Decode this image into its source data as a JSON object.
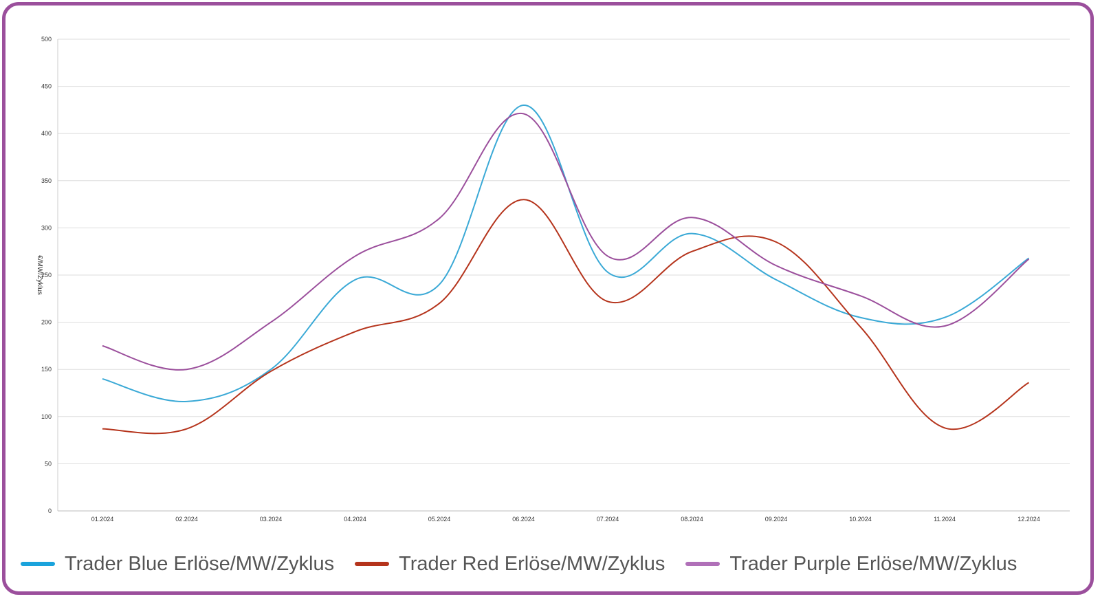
{
  "chart_data": {
    "type": "line",
    "title": "",
    "xlabel": "",
    "ylabel": "€/MW/Zyklus",
    "ylim": [
      0,
      500
    ],
    "yticks": [
      0,
      50,
      100,
      150,
      200,
      250,
      300,
      350,
      400,
      450,
      500
    ],
    "grid": true,
    "legend_position": "bottom",
    "categories": [
      "01.2024",
      "02.2024",
      "03.2024",
      "04.2024",
      "05.2024",
      "06.2024",
      "07.2024",
      "08.2024",
      "09.2024",
      "10.2024",
      "11.2024",
      "12.2024"
    ],
    "series": [
      {
        "name": "Trader Blue Erlöse/MW/Zyklus",
        "color": "#3aa9d6",
        "values": [
          140,
          116,
          150,
          245,
          240,
          430,
          253,
          294,
          245,
          205,
          205,
          268
        ]
      },
      {
        "name": "Trader Red Erlöse/MW/Zyklus",
        "color": "#b5341c",
        "values": [
          87,
          87,
          148,
          190,
          220,
          330,
          222,
          275,
          285,
          195,
          88,
          136
        ]
      },
      {
        "name": "Trader Purple Erlöse/MW/Zyklus",
        "color": "#9b4f9c",
        "values": [
          175,
          150,
          200,
          270,
          310,
          421,
          270,
          311,
          260,
          228,
          196,
          267
        ]
      }
    ]
  },
  "legend": {
    "items": [
      {
        "label": "Trader Blue Erlöse/MW/Zyklus",
        "color": "#1aa3dc"
      },
      {
        "label": "Trader Red Erlöse/MW/Zyklus",
        "color": "#b5341c"
      },
      {
        "label": "Trader Purple Erlöse/MW/Zyklus",
        "color": "#b070b8"
      }
    ]
  }
}
